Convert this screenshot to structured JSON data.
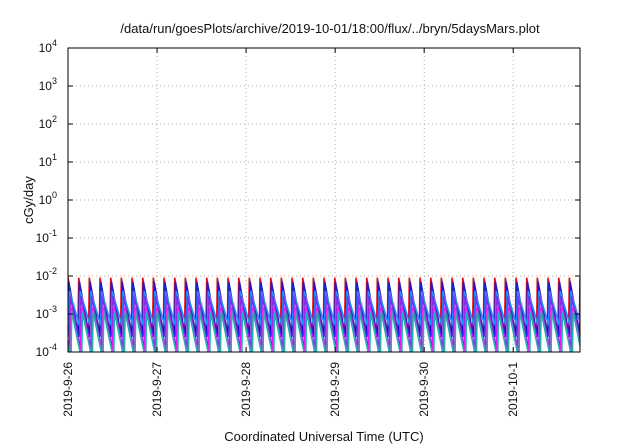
{
  "chart_data": {
    "type": "line",
    "title": "/data/run/goesPlots/archive/2019-10-01/18:00/flux/../bryn/5daysMars.plot",
    "xlabel": "Coordinated Universal Time (UTC)",
    "ylabel": "cGy/day",
    "y_scale": "log",
    "ylim": [
      0.0001,
      10000
    ],
    "xlim": [
      "2019-09-26T00:00",
      "2019-10-01T18:00"
    ],
    "y_ticks": [
      {
        "base": "10",
        "exp": "4"
      },
      {
        "base": "10",
        "exp": "3"
      },
      {
        "base": "10",
        "exp": "2"
      },
      {
        "base": "10",
        "exp": "1"
      },
      {
        "base": "10",
        "exp": "0"
      },
      {
        "base": "10",
        "exp": "-1"
      },
      {
        "base": "10",
        "exp": "-2"
      },
      {
        "base": "10",
        "exp": "-3"
      },
      {
        "base": "10",
        "exp": "-4"
      }
    ],
    "x_ticks": [
      "2019-9-26",
      "2019-9-27",
      "2019-9-28",
      "2019-9-29",
      "2019-9-30",
      "2019-10-1"
    ],
    "grid": true,
    "legend": "none",
    "series": [
      {
        "color": "#e8101a",
        "period_hours": 2.875,
        "peak": 0.009,
        "trough": 0.0003
      },
      {
        "color": "#1a1ad0",
        "period_hours": 2.875,
        "peak": 0.007,
        "trough": 0.00025
      },
      {
        "color": "#1e90ff",
        "period_hours": 2.875,
        "peak": 0.004,
        "trough": 0.0005
      },
      {
        "color": "#8a2be2",
        "period_hours": 2.875,
        "peak": 0.003,
        "trough": 0.00012
      },
      {
        "color": "#ff10ff",
        "period_hours": 2.875,
        "peak": 0.0015,
        "trough": 8e-05
      },
      {
        "color": "#20b2aa",
        "period_hours": 2.875,
        "peak": 0.0012,
        "trough": 6e-05
      }
    ]
  }
}
